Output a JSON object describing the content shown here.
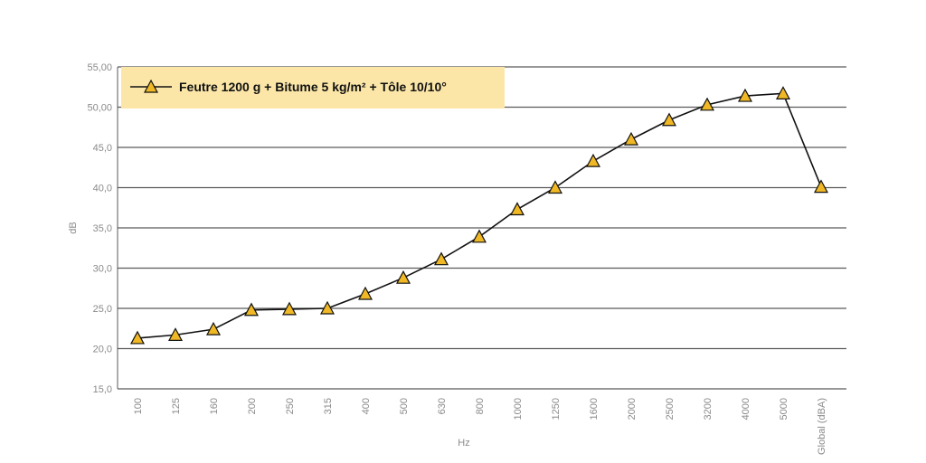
{
  "chart_data": {
    "type": "line",
    "xlabel": "Hz",
    "ylabel": "dB",
    "categories": [
      "100",
      "125",
      "160",
      "200",
      "250",
      "315",
      "400",
      "500",
      "630",
      "800",
      "1000",
      "1250",
      "1600",
      "2000",
      "2500",
      "3200",
      "4000",
      "5000",
      "Global (dBA)"
    ],
    "ylim": [
      15,
      55
    ],
    "yticks": [
      15,
      20,
      25,
      30,
      35,
      40,
      45,
      50,
      55
    ],
    "ytick_labels": [
      "15,0",
      "20,0",
      "25,0",
      "30,0",
      "35,0",
      "40,0",
      "45,0",
      "50,00",
      "55,00"
    ],
    "grid": "horizontal",
    "legend_position": "top-left",
    "series": [
      {
        "name": "Feutre 1200 g + Bitume 5 kg/m² + Tôle 10/10°",
        "marker": "triangle",
        "values": [
          21.3,
          21.7,
          22.4,
          24.8,
          24.9,
          25.0,
          26.8,
          28.8,
          31.1,
          33.9,
          37.3,
          40.0,
          43.3,
          46.0,
          48.4,
          50.3,
          51.4,
          51.7,
          40.1
        ]
      }
    ],
    "colors": {
      "line": "#111111",
      "marker_fill": "#f0b825",
      "marker_stroke": "#111111",
      "legend_bg": "#fbe6a8",
      "grid": "#5a5a5a",
      "tick_text": "#8a8a8a"
    }
  }
}
